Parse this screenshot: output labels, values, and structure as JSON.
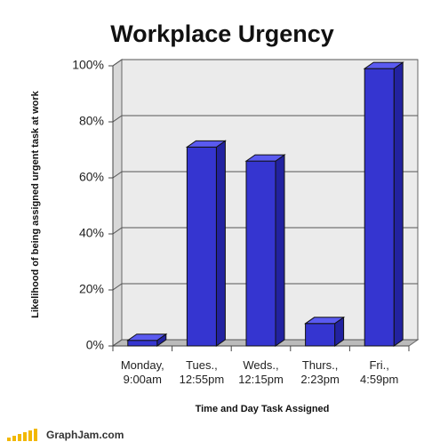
{
  "chart_data": {
    "type": "bar3d",
    "title": "Workplace Urgency",
    "x_label": "Time and Day Task Assigned",
    "y_label": "Likelihood of being assigned urgent task at work",
    "categories": [
      "Monday, 9:00am",
      "Tues., 12:55pm",
      "Weds., 12:15pm",
      "Thurs., 2:23pm",
      "Fri., 4:59pm"
    ],
    "values": [
      2,
      71,
      66,
      8,
      99
    ],
    "color": "#3535d0",
    "ylim": [
      0,
      100
    ],
    "yticks": [
      {
        "value": 0,
        "label": "0%"
      },
      {
        "value": 20,
        "label": "20%"
      },
      {
        "value": 40,
        "label": "40%"
      },
      {
        "value": 60,
        "label": "60%"
      },
      {
        "value": 80,
        "label": "80%"
      },
      {
        "value": 100,
        "label": "100%"
      }
    ],
    "grid": true,
    "watermark": "GraphJam.com"
  }
}
